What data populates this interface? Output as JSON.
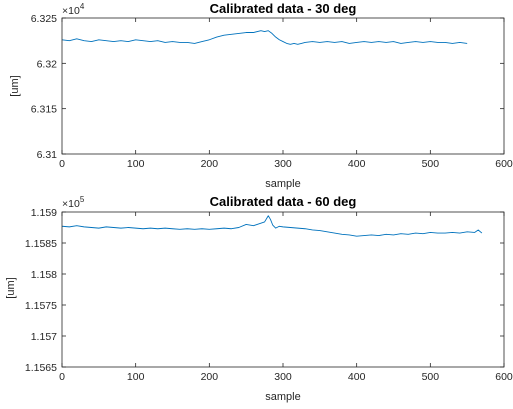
{
  "colors": {
    "series": "#0072BD",
    "axis": "#262626",
    "background": "#ffffff"
  },
  "chart_data": [
    {
      "type": "line",
      "title": "Calibrated data - 30 deg",
      "xlabel": "sample",
      "ylabel": "[um]",
      "xlim": [
        0,
        600
      ],
      "ylim": [
        6.31,
        6.325
      ],
      "y_exponent_label": "×10",
      "y_exponent_power": "4",
      "xticks": [
        "0",
        "100",
        "200",
        "300",
        "400",
        "500",
        "600"
      ],
      "yticks": [
        "6.31",
        "6.315",
        "6.32",
        "6.325"
      ],
      "grid": false,
      "series": [
        {
          "x": [
            0,
            10,
            20,
            30,
            40,
            50,
            60,
            70,
            80,
            90,
            100,
            110,
            120,
            130,
            140,
            150,
            160,
            170,
            180,
            190,
            200,
            210,
            220,
            230,
            240,
            250,
            260,
            270,
            275,
            280,
            285,
            290,
            295,
            300,
            305,
            310,
            315,
            320,
            325,
            330,
            340,
            350,
            360,
            370,
            380,
            390,
            400,
            410,
            420,
            430,
            440,
            450,
            460,
            470,
            480,
            490,
            500,
            510,
            520,
            530,
            540,
            550
          ],
          "y": [
            6.3226,
            6.3225,
            6.3227,
            6.3225,
            6.3224,
            6.3226,
            6.3225,
            6.3224,
            6.3225,
            6.3224,
            6.3226,
            6.3225,
            6.3224,
            6.3225,
            6.3223,
            6.3224,
            6.3223,
            6.3223,
            6.3222,
            6.3224,
            6.3226,
            6.3229,
            6.3231,
            6.3232,
            6.3233,
            6.3234,
            6.3234,
            6.3236,
            6.3235,
            6.3236,
            6.3233,
            6.3229,
            6.3226,
            6.3224,
            6.3222,
            6.3221,
            6.3222,
            6.3221,
            6.3222,
            6.3223,
            6.3224,
            6.3223,
            6.3224,
            6.3223,
            6.3224,
            6.3222,
            6.3223,
            6.3224,
            6.3223,
            6.3224,
            6.3223,
            6.3224,
            6.3222,
            6.3223,
            6.3224,
            6.3223,
            6.3224,
            6.3223,
            6.3223,
            6.3222,
            6.3223,
            6.3222
          ]
        }
      ]
    },
    {
      "type": "line",
      "title": "Calibrated data - 60 deg",
      "xlabel": "sample",
      "ylabel": "[um]",
      "xlim": [
        0,
        600
      ],
      "ylim": [
        1.1565,
        1.159
      ],
      "y_exponent_label": "×10",
      "y_exponent_power": "5",
      "xticks": [
        "0",
        "100",
        "200",
        "300",
        "400",
        "500",
        "600"
      ],
      "yticks": [
        "1.1565",
        "1.157",
        "1.1575",
        "1.158",
        "1.1585",
        "1.159"
      ],
      "grid": false,
      "series": [
        {
          "x": [
            0,
            10,
            20,
            30,
            40,
            50,
            60,
            70,
            80,
            90,
            100,
            110,
            120,
            130,
            140,
            150,
            160,
            170,
            180,
            190,
            200,
            210,
            220,
            230,
            240,
            250,
            260,
            270,
            275,
            280,
            283,
            286,
            290,
            295,
            300,
            310,
            320,
            330,
            340,
            350,
            360,
            370,
            380,
            390,
            400,
            410,
            420,
            430,
            440,
            450,
            460,
            470,
            480,
            490,
            500,
            510,
            520,
            530,
            540,
            550,
            560,
            565,
            570
          ],
          "y": [
            1.15877,
            1.15876,
            1.15878,
            1.15876,
            1.15875,
            1.15874,
            1.15876,
            1.15875,
            1.15874,
            1.15875,
            1.15874,
            1.15873,
            1.15874,
            1.15873,
            1.15874,
            1.15873,
            1.15872,
            1.15873,
            1.15872,
            1.15873,
            1.15872,
            1.15873,
            1.15874,
            1.15873,
            1.15875,
            1.1588,
            1.15878,
            1.15882,
            1.15884,
            1.15894,
            1.15888,
            1.15879,
            1.15874,
            1.15877,
            1.15876,
            1.15875,
            1.15874,
            1.15873,
            1.15871,
            1.1587,
            1.15868,
            1.15866,
            1.15864,
            1.15863,
            1.15861,
            1.15862,
            1.15863,
            1.15862,
            1.15864,
            1.15863,
            1.15865,
            1.15864,
            1.15866,
            1.15865,
            1.15867,
            1.15866,
            1.15866,
            1.15867,
            1.15866,
            1.15868,
            1.15867,
            1.15871,
            1.15866
          ]
        }
      ]
    }
  ]
}
